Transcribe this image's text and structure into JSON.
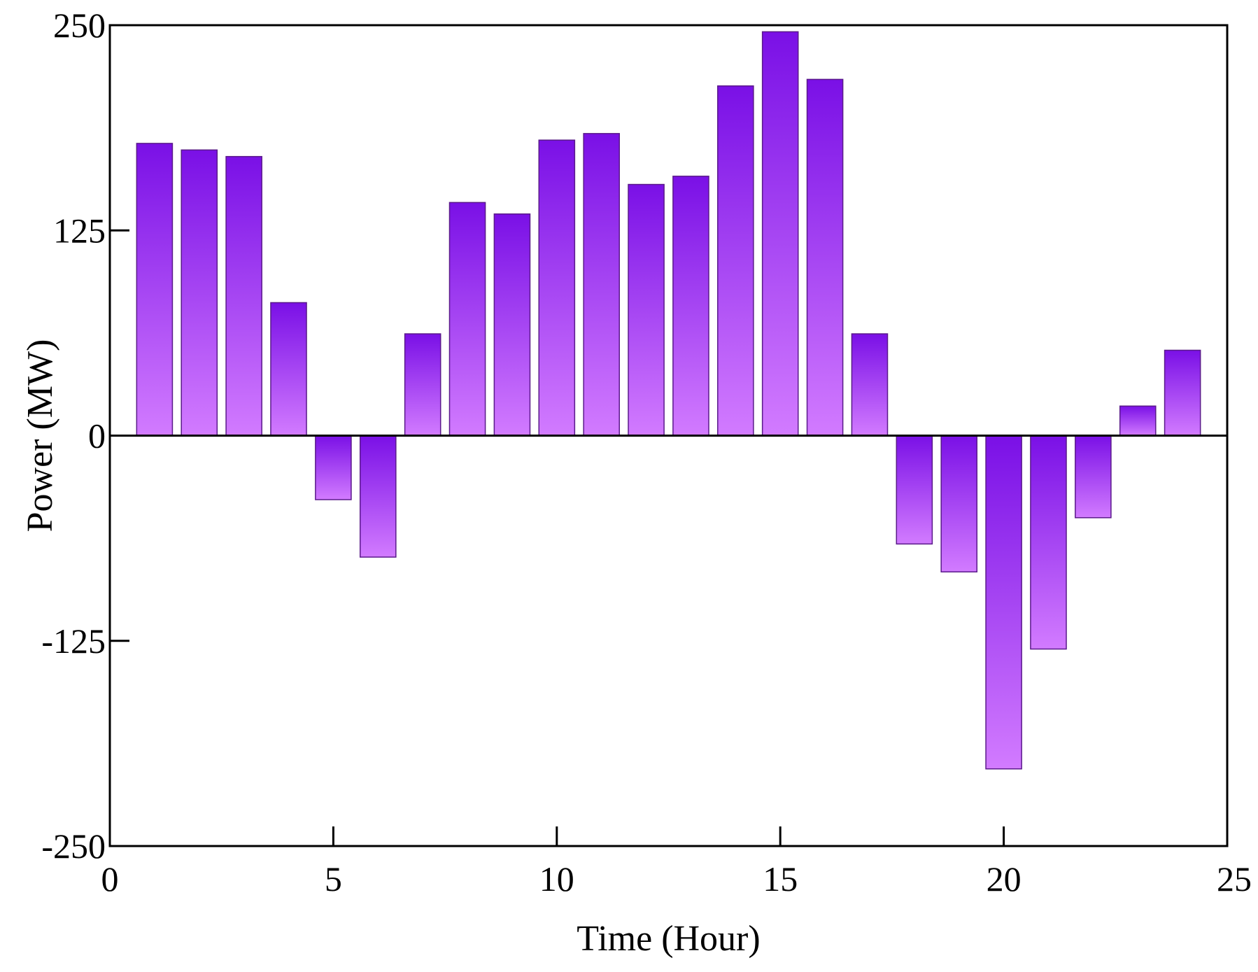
{
  "chart_data": {
    "type": "bar",
    "title": "",
    "xlabel": "Time (Hour)",
    "ylabel": "Power (MW)",
    "x": [
      1,
      2,
      3,
      4,
      5,
      6,
      7,
      8,
      9,
      10,
      11,
      12,
      13,
      14,
      15,
      16,
      17,
      18,
      19,
      20,
      21,
      22,
      23,
      24
    ],
    "series": [
      {
        "values": [
          178,
          174,
          170,
          81,
          -39,
          -74,
          62,
          142,
          135,
          180,
          184,
          153,
          158,
          213,
          246,
          217,
          62,
          -66,
          -83,
          -203,
          -130,
          -50,
          18,
          52
        ]
      }
    ],
    "xlim": [
      0,
      25
    ],
    "ylim": [
      -250,
      250
    ],
    "x_ticks": [
      "0",
      "5",
      "10",
      "15",
      "20",
      "25"
    ],
    "y_ticks": [
      "250",
      "125",
      "0",
      "-125",
      "-250"
    ],
    "grid": false,
    "legend": "none",
    "colors": {
      "bar_top": "#7a10e6",
      "bar_bottom": "#d27bff",
      "bar_edge": "#5a1a8a",
      "axis": "#000000"
    }
  }
}
